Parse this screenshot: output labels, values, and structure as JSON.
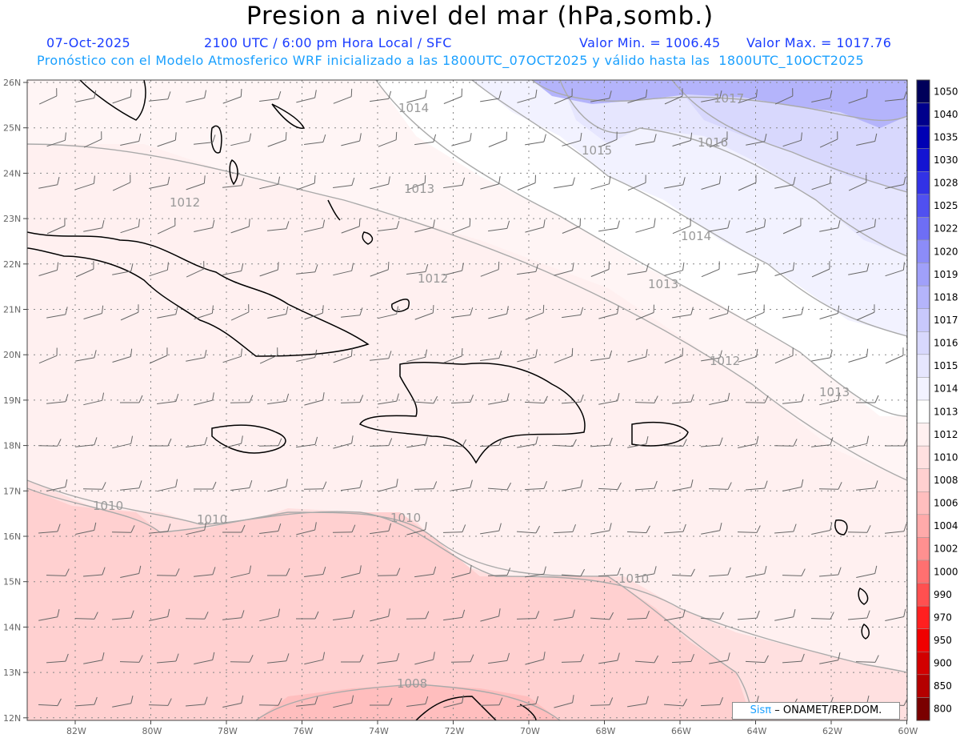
{
  "title": "Presion a nivel del mar (hPa,somb.)",
  "date": "07-Oct-2025",
  "time_info": "2100 UTC / 6:00 pm Hora Local / SFC",
  "min_label": "Valor Min. = 1006.45",
  "max_label": "Valor Max. = 1017.76",
  "forecast_line": "Pronóstico con el Modelo Atmosferico WRF inicializado a las 1800UTC_07OCT2025 y válido hasta las  1800UTC_10OCT2025",
  "credit": {
    "brand": "Sisπ",
    "org": "– ONAMET/REP.DOM."
  },
  "lat_labels": [
    "26N",
    "25N",
    "24N",
    "23N",
    "22N",
    "21N",
    "20N",
    "19N",
    "18N",
    "17N",
    "16N",
    "15N",
    "14N",
    "13N",
    "12N"
  ],
  "lon_labels": [
    "82W",
    "80W",
    "78W",
    "76W",
    "74W",
    "72W",
    "70W",
    "68W",
    "66W",
    "64W",
    "62W",
    "60W"
  ],
  "contour_labels": [
    "1014",
    "1017",
    "1015",
    "1016",
    "1013",
    "1012",
    "1014",
    "1013",
    "1012",
    "1012",
    "1013",
    "1010",
    "1010",
    "1010",
    "1010",
    "1008"
  ],
  "colorbar": {
    "labels": [
      "1050",
      "1040",
      "1035",
      "1030",
      "1028",
      "1025",
      "1022",
      "1020",
      "1019",
      "1018",
      "1017",
      "1016",
      "1015",
      "1014",
      "1013",
      "1012",
      "1010",
      "1008",
      "1006",
      "1004",
      "1002",
      "1000",
      "990",
      "970",
      "950",
      "900",
      "850",
      "800"
    ],
    "colors": [
      "#00005a",
      "#00008c",
      "#0000b4",
      "#1414d2",
      "#3232e6",
      "#5050f0",
      "#6e6ef5",
      "#8c8cf8",
      "#a0a0fa",
      "#b4b4fb",
      "#c8c8fc",
      "#d8d8fd",
      "#e6e6fe",
      "#f2f2ff",
      "#ffffff",
      "#fff0f0",
      "#ffe0e0",
      "#ffd0d0",
      "#ffbebe",
      "#ffaaaa",
      "#ff9090",
      "#ff7070",
      "#ff5050",
      "#ff2020",
      "#f00000",
      "#d20000",
      "#b40000",
      "#7a0000"
    ]
  }
}
